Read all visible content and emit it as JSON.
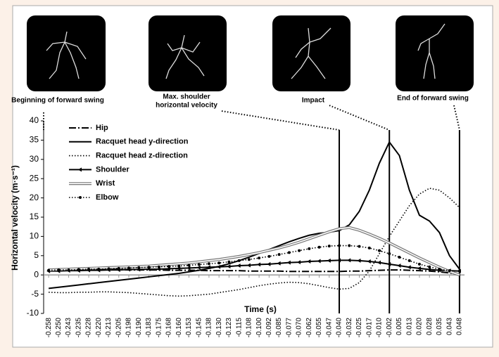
{
  "chart_data": {
    "type": "line",
    "ylabel": "Horizontal velocity (m·s⁻¹)",
    "xlabel": "Time (s)",
    "annotations": [
      [
        "Beginning of forward swing"
      ],
      [
        "Max. shoulder",
        "horizontal velocity"
      ],
      [
        "Impact"
      ],
      [
        "End of forward swing"
      ]
    ],
    "categories": [
      "-0.258",
      "-0.250",
      "-0.243",
      "-0.235",
      "-0.228",
      "-0.220",
      "-0.213",
      "-0.205",
      "-0.198",
      "-0.190",
      "-0.183",
      "-0.175",
      "-0.168",
      "-0.160",
      "-0.153",
      "-0.145",
      "-0.138",
      "-0.130",
      "-0.123",
      "-0.115",
      "-0.108",
      "-0.100",
      "-0.092",
      "-0.085",
      "-0.077",
      "-0.070",
      "-0.062",
      "-0.055",
      "-0.047",
      "-0.040",
      "-0.032",
      "-0.025",
      "-0.017",
      "-0.010",
      "-0.002",
      "0.005",
      "0.013",
      "0.020",
      "0.028",
      "0.035",
      "0.043",
      "0.048"
    ],
    "ylim": [
      -10,
      40
    ],
    "yticks": [
      -10,
      -5,
      0,
      5,
      10,
      15,
      20,
      25,
      30,
      35,
      40
    ],
    "series": [
      {
        "name": "Hip",
        "color": "#000000",
        "line_style": "dash-dot",
        "values": [
          1.5,
          1.5,
          1.5,
          1.5,
          1.4,
          1.4,
          1.4,
          1.4,
          1.3,
          1.3,
          1.3,
          1.3,
          1.2,
          1.2,
          1.2,
          1.2,
          1.1,
          1.1,
          1.1,
          1.1,
          1.0,
          1.0,
          1.0,
          1.0,
          0.9,
          0.9,
          0.9,
          0.9,
          0.9,
          0.9,
          1.0,
          1.0,
          1.1,
          1.2,
          1.3,
          1.3,
          1.2,
          1.1,
          1.0,
          0.8,
          0.5,
          0.2
        ]
      },
      {
        "name": "Racquet head y-direction",
        "color": "#000000",
        "line_style": "solid",
        "values": [
          -3.5,
          -3.2,
          -2.9,
          -2.6,
          -2.3,
          -2.0,
          -1.7,
          -1.4,
          -1.1,
          -0.8,
          -0.5,
          -0.2,
          0.1,
          0.4,
          0.8,
          1.2,
          1.7,
          2.2,
          2.9,
          3.7,
          4.6,
          5.6,
          6.6,
          7.6,
          8.6,
          9.5,
          10.3,
          10.8,
          11.1,
          11.5,
          13,
          16.5,
          22,
          29,
          34.5,
          31,
          22,
          15.5,
          14,
          11,
          5,
          1.5
        ]
      },
      {
        "name": "Racquet head z-direction",
        "color": "#000000",
        "line_style": "dotted",
        "values": [
          -4.5,
          -4.6,
          -4.6,
          -4.5,
          -4.5,
          -4.4,
          -4.4,
          -4.5,
          -4.6,
          -4.8,
          -5.0,
          -5.2,
          -5.4,
          -5.5,
          -5.4,
          -5.2,
          -5.0,
          -4.6,
          -4.2,
          -3.8,
          -3.3,
          -2.8,
          -2.4,
          -2.1,
          -1.9,
          -2.0,
          -2.3,
          -2.8,
          -3.3,
          -3.7,
          -3.5,
          -2.0,
          1.0,
          5.5,
          10,
          14,
          18,
          21,
          22.5,
          22,
          20,
          17.5
        ]
      },
      {
        "name": "Shoulder",
        "color": "#000000",
        "line_style": "solid",
        "marker": "arrow",
        "values": [
          1.0,
          1.0,
          1.1,
          1.1,
          1.2,
          1.2,
          1.3,
          1.3,
          1.4,
          1.4,
          1.5,
          1.5,
          1.6,
          1.7,
          1.8,
          1.9,
          2.0,
          2.1,
          2.2,
          2.4,
          2.5,
          2.7,
          2.8,
          3.0,
          3.2,
          3.3,
          3.5,
          3.6,
          3.7,
          3.8,
          3.8,
          3.7,
          3.5,
          3.2,
          2.8,
          2.4,
          2.0,
          1.7,
          1.4,
          1.2,
          1.1,
          1.0
        ]
      },
      {
        "name": "Wrist",
        "color": "#777777",
        "line_style": "double",
        "values": [
          1.3,
          1.4,
          1.5,
          1.6,
          1.7,
          1.8,
          1.9,
          2.0,
          2.1,
          2.2,
          2.3,
          2.5,
          2.7,
          2.9,
          3.1,
          3.4,
          3.7,
          4.0,
          4.4,
          4.8,
          5.3,
          5.8,
          6.4,
          7.0,
          7.7,
          8.5,
          9.4,
          10.3,
          11.2,
          12.0,
          12.3,
          11.6,
          10.6,
          9.5,
          8.3,
          7.0,
          5.7,
          4.4,
          3.2,
          2.0,
          0.9,
          0
        ]
      },
      {
        "name": "Elbow",
        "color": "#000000",
        "line_style": "dotted",
        "marker": "circle",
        "values": [
          1.2,
          1.3,
          1.3,
          1.4,
          1.5,
          1.5,
          1.6,
          1.7,
          1.8,
          1.9,
          2.0,
          2.1,
          2.2,
          2.3,
          2.5,
          2.7,
          2.9,
          3.1,
          3.4,
          3.7,
          4.0,
          4.4,
          4.8,
          5.3,
          5.8,
          6.3,
          6.8,
          7.2,
          7.5,
          7.6,
          7.6,
          7.4,
          7.0,
          6.3,
          5.5,
          4.6,
          3.7,
          2.8,
          2.1,
          1.5,
          1.1,
          1.0
        ]
      }
    ]
  }
}
